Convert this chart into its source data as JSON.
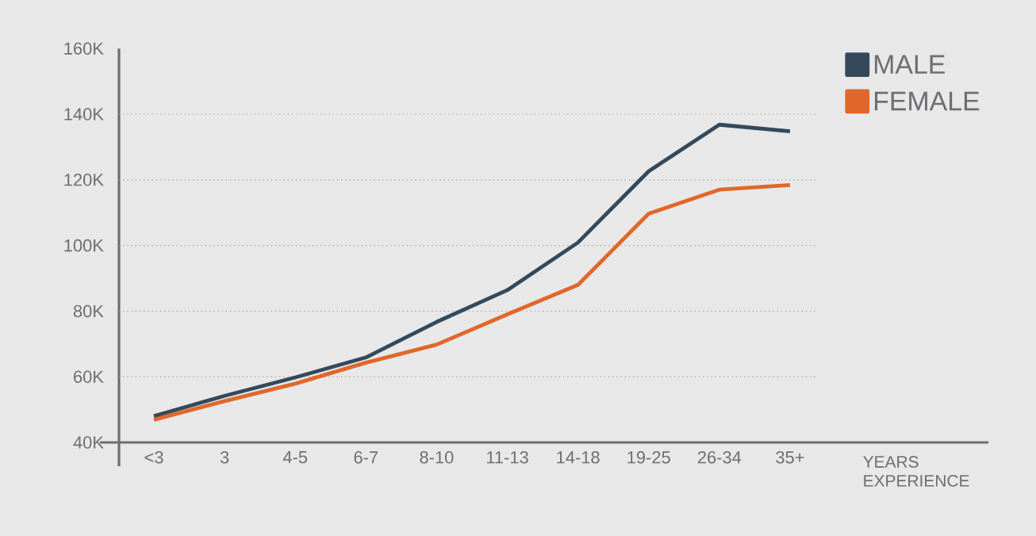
{
  "chart_data": {
    "type": "line",
    "xlabel": "YEARS EXPERIENCE",
    "categories": [
      "<3",
      "3",
      "4-5",
      "6-7",
      "8-10",
      "11-13",
      "14-18",
      "19-25",
      "26-34",
      "35+"
    ],
    "series": [
      {
        "name": "MALE",
        "color": "#34495a",
        "values": [
          48000,
          54200,
          59800,
          65900,
          76700,
          86400,
          100900,
          122600,
          136800,
          134800
        ]
      },
      {
        "name": "FEMALE",
        "color": "#e0672a",
        "values": [
          46900,
          52600,
          57900,
          64300,
          69800,
          79000,
          88000,
          109700,
          117000,
          118400
        ]
      }
    ],
    "ylim": [
      40000,
      160000
    ],
    "yticks": [
      {
        "value": 40000,
        "label": "40K"
      },
      {
        "value": 60000,
        "label": "60K"
      },
      {
        "value": 80000,
        "label": "80K"
      },
      {
        "value": 100000,
        "label": "100K"
      },
      {
        "value": 120000,
        "label": "120K"
      },
      {
        "value": 140000,
        "label": "140K"
      },
      {
        "value": 160000,
        "label": "160K"
      }
    ],
    "grid": "y",
    "legend": "top right",
    "marker": "none",
    "line_style": "solid"
  }
}
